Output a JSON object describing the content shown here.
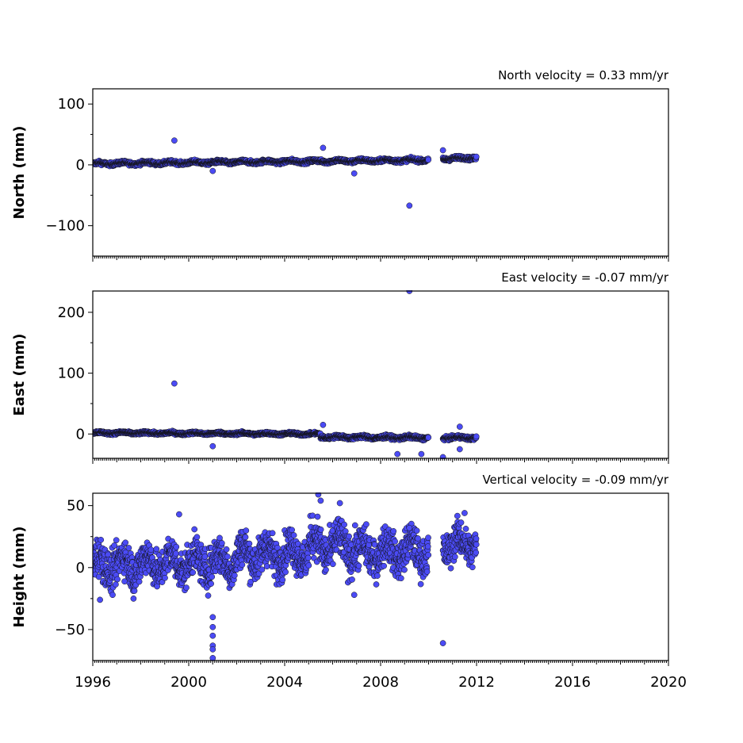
{
  "chart_data": [
    {
      "type": "scatter",
      "ylabel": "North (mm)",
      "annotation": "North velocity = 0.33 mm/yr",
      "xlim": [
        1996,
        2020
      ],
      "ylim": [
        -150,
        125
      ],
      "yticks": [
        -100,
        0,
        100
      ],
      "ytick_labels": [
        "−100",
        "0",
        "100"
      ],
      "outliers": [
        {
          "x": 1999.4,
          "y": 40
        },
        {
          "x": 2001.0,
          "y": -10
        },
        {
          "x": 2005.6,
          "y": 28
        },
        {
          "x": 2006.9,
          "y": -14
        },
        {
          "x": 2009.2,
          "y": -67
        },
        {
          "x": 2010.6,
          "y": 24
        }
      ],
      "segments": [
        {
          "x0": 1996.0,
          "x1": 2010.0,
          "y0": 2,
          "y1": 8,
          "spread": 4
        },
        {
          "x0": 2010.6,
          "x1": 2012.0,
          "y0": 10,
          "y1": 12,
          "spread": 4
        }
      ]
    },
    {
      "type": "scatter",
      "ylabel": "East (mm)",
      "annotation": "East velocity = -0.07 mm/yr",
      "xlim": [
        1996,
        2020
      ],
      "ylim": [
        -40,
        235
      ],
      "yticks": [
        0,
        100,
        200
      ],
      "ytick_labels": [
        "0",
        "100",
        "200"
      ],
      "outliers": [
        {
          "x": 1999.4,
          "y": 83
        },
        {
          "x": 2001.0,
          "y": -20
        },
        {
          "x": 2005.6,
          "y": 15
        },
        {
          "x": 2008.7,
          "y": -33
        },
        {
          "x": 2009.2,
          "y": 235
        },
        {
          "x": 2009.7,
          "y": -33
        },
        {
          "x": 2010.6,
          "y": -38
        },
        {
          "x": 2011.3,
          "y": 12
        },
        {
          "x": 2011.3,
          "y": -25
        }
      ],
      "segments": [
        {
          "x0": 1996.0,
          "x1": 2005.5,
          "y0": 2,
          "y1": 0,
          "spread": 3
        },
        {
          "x0": 2005.5,
          "x1": 2010.0,
          "y0": -5,
          "y1": -6,
          "spread": 4
        },
        {
          "x0": 2010.6,
          "x1": 2012.0,
          "y0": -6,
          "y1": -6,
          "spread": 4
        }
      ]
    },
    {
      "type": "scatter",
      "ylabel": "Height (mm)",
      "annotation": "Vertical velocity = -0.09 mm/yr",
      "xlim": [
        1996,
        2020
      ],
      "ylim": [
        -75,
        60
      ],
      "yticks": [
        -50,
        0,
        50
      ],
      "ytick_labels": [
        "−50",
        "0",
        "50"
      ],
      "xticks": [
        1996,
        2000,
        2004,
        2008,
        2012,
        2016,
        2020
      ],
      "xtick_labels": [
        "1996",
        "2000",
        "2004",
        "2008",
        "2012",
        "2016",
        "2020"
      ],
      "outliers": [
        {
          "x": 1996.3,
          "y": -26
        },
        {
          "x": 1997.7,
          "y": -25
        },
        {
          "x": 1999.6,
          "y": 43
        },
        {
          "x": 2001.0,
          "y": -40
        },
        {
          "x": 2001.0,
          "y": -48
        },
        {
          "x": 2001.0,
          "y": -55
        },
        {
          "x": 2001.0,
          "y": -63
        },
        {
          "x": 2001.0,
          "y": -66
        },
        {
          "x": 2001.0,
          "y": -73
        },
        {
          "x": 2005.4,
          "y": 59
        },
        {
          "x": 2005.5,
          "y": 54
        },
        {
          "x": 2006.3,
          "y": 52
        },
        {
          "x": 2006.9,
          "y": -22
        },
        {
          "x": 2009.2,
          "y": 32
        },
        {
          "x": 2010.6,
          "y": -61
        },
        {
          "x": 2011.5,
          "y": 44
        }
      ],
      "segments": [
        {
          "x0": 1996.0,
          "x1": 2002.0,
          "y0": 2,
          "y1": 5,
          "spread": 22
        },
        {
          "x0": 2002.0,
          "x1": 2005.0,
          "y0": 10,
          "y1": 12,
          "spread": 22
        },
        {
          "x0": 2005.0,
          "x1": 2007.0,
          "y0": 18,
          "y1": 16,
          "spread": 24
        },
        {
          "x0": 2007.0,
          "x1": 2010.0,
          "y0": 12,
          "y1": 14,
          "spread": 22
        },
        {
          "x0": 2010.6,
          "x1": 2012.0,
          "y0": 18,
          "y1": 20,
          "spread": 20
        }
      ]
    }
  ]
}
